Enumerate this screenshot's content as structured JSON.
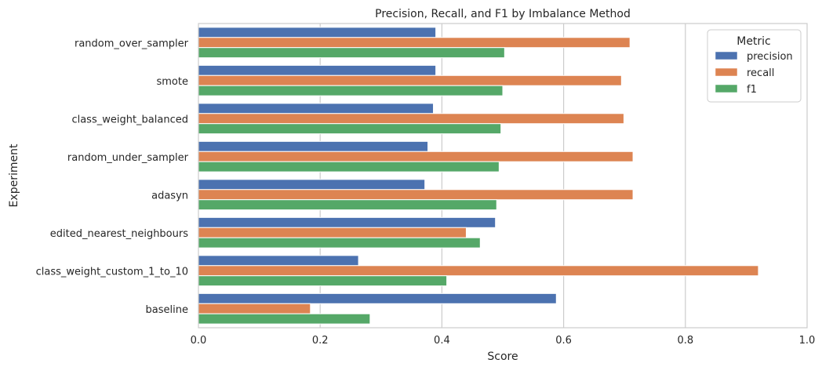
{
  "chart_data": {
    "type": "bar",
    "orientation": "horizontal",
    "title": "Precision, Recall, and F1 by Imbalance Method",
    "xlabel": "Score",
    "ylabel": "Experiment",
    "xlim": [
      0.0,
      1.0
    ],
    "xticks": [
      "0.0",
      "0.2",
      "0.4",
      "0.6",
      "0.8",
      "1.0"
    ],
    "grid": true,
    "categories": [
      "random_over_sampler",
      "smote",
      "class_weight_balanced",
      "random_under_sampler",
      "adasyn",
      "edited_nearest_neighbours",
      "class_weight_custom_1_to_10",
      "baseline"
    ],
    "series": [
      {
        "name": "precision",
        "color": "#4c72b0",
        "values": [
          0.39,
          0.39,
          0.386,
          0.377,
          0.372,
          0.488,
          0.263,
          0.588
        ]
      },
      {
        "name": "recall",
        "color": "#dd8452",
        "values": [
          0.709,
          0.695,
          0.699,
          0.714,
          0.714,
          0.44,
          0.92,
          0.184
        ]
      },
      {
        "name": "f1",
        "color": "#55a868",
        "values": [
          0.503,
          0.5,
          0.497,
          0.494,
          0.49,
          0.463,
          0.408,
          0.282
        ]
      }
    ],
    "legend": {
      "title": "Metric",
      "placement": "top-right"
    }
  }
}
